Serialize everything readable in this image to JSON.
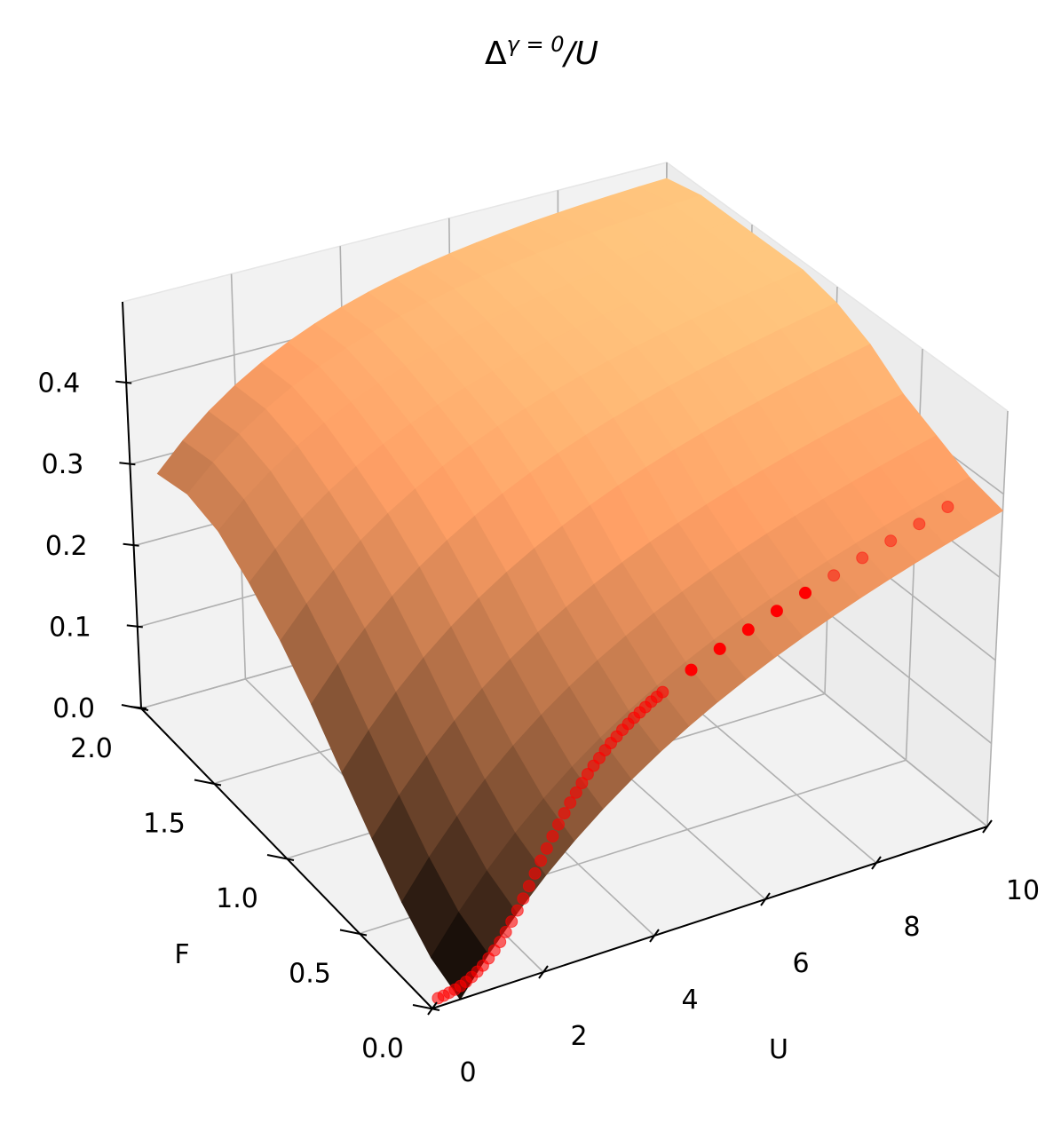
{
  "chart_data": {
    "type": "surface",
    "title": "Δ^{γ = 0}/U",
    "xlabel": "U",
    "ylabel": "F",
    "zlabel": "",
    "xlim": [
      0,
      10
    ],
    "ylim": [
      0,
      2
    ],
    "zlim": [
      0,
      0.5
    ],
    "x_ticks": [
      "0",
      "2",
      "4",
      "6",
      "8",
      "10"
    ],
    "y_ticks": [
      "0.0",
      "0.5",
      "1.0",
      "1.5",
      "2.0"
    ],
    "z_ticks": [
      "0.0",
      "0.1",
      "0.2",
      "0.3",
      "0.4"
    ],
    "grid": true,
    "colormap": "copper",
    "surface": {
      "U": [
        0.5,
        1.0,
        1.5,
        2.0,
        2.5,
        3.0,
        3.5,
        4.0,
        4.5,
        5.0,
        5.5,
        6.0,
        6.5,
        7.0,
        7.5,
        8.0,
        8.5,
        9.0,
        9.5,
        10.0
      ],
      "F": [
        0.0,
        0.2,
        0.4,
        0.6,
        0.8,
        1.0,
        1.2,
        1.4,
        1.6,
        1.8,
        2.0
      ],
      "edge_U_min_values": [
        0.0,
        0.02,
        0.06,
        0.11,
        0.16,
        0.21,
        0.25,
        0.28,
        0.3,
        0.3,
        0.28
      ],
      "edge_U_max_values": [
        0.38,
        0.39,
        0.41,
        0.43,
        0.46,
        0.48,
        0.49,
        0.49,
        0.49,
        0.49,
        0.48
      ]
    },
    "series": [
      {
        "color": "#ff0000",
        "F": 0.0,
        "points": [
          [
            0.1,
            0.015
          ],
          [
            0.2,
            0.016
          ],
          [
            0.3,
            0.018
          ],
          [
            0.4,
            0.02
          ],
          [
            0.5,
            0.023
          ],
          [
            0.6,
            0.027
          ],
          [
            0.7,
            0.032
          ],
          [
            0.8,
            0.038
          ],
          [
            0.9,
            0.045
          ],
          [
            1.0,
            0.054
          ],
          [
            1.1,
            0.064
          ],
          [
            1.2,
            0.075
          ],
          [
            1.3,
            0.088
          ],
          [
            1.4,
            0.102
          ],
          [
            1.5,
            0.117
          ],
          [
            1.6,
            0.133
          ],
          [
            1.7,
            0.15
          ],
          [
            1.8,
            0.167
          ],
          [
            1.9,
            0.184
          ],
          [
            2.0,
            0.2
          ],
          [
            2.1,
            0.216
          ],
          [
            2.2,
            0.231
          ],
          [
            2.3,
            0.245
          ],
          [
            2.4,
            0.258
          ],
          [
            2.5,
            0.27
          ],
          [
            2.6,
            0.281
          ],
          [
            2.7,
            0.291
          ],
          [
            2.8,
            0.3
          ],
          [
            2.9,
            0.308
          ],
          [
            3.0,
            0.316
          ],
          [
            3.1,
            0.323
          ],
          [
            3.2,
            0.329
          ],
          [
            3.3,
            0.335
          ],
          [
            3.4,
            0.34
          ],
          [
            3.5,
            0.345
          ],
          [
            3.6,
            0.349
          ],
          [
            3.7,
            0.353
          ],
          [
            3.8,
            0.357
          ],
          [
            3.9,
            0.36
          ],
          [
            4.0,
            0.363
          ],
          [
            4.5,
            0.375
          ],
          [
            5.0,
            0.385
          ],
          [
            5.5,
            0.392
          ],
          [
            6.0,
            0.398
          ],
          [
            6.5,
            0.403
          ],
          [
            7.0,
            0.407
          ],
          [
            7.5,
            0.411
          ],
          [
            8.0,
            0.414
          ],
          [
            8.5,
            0.417
          ],
          [
            9.0,
            0.42
          ]
        ]
      }
    ]
  }
}
